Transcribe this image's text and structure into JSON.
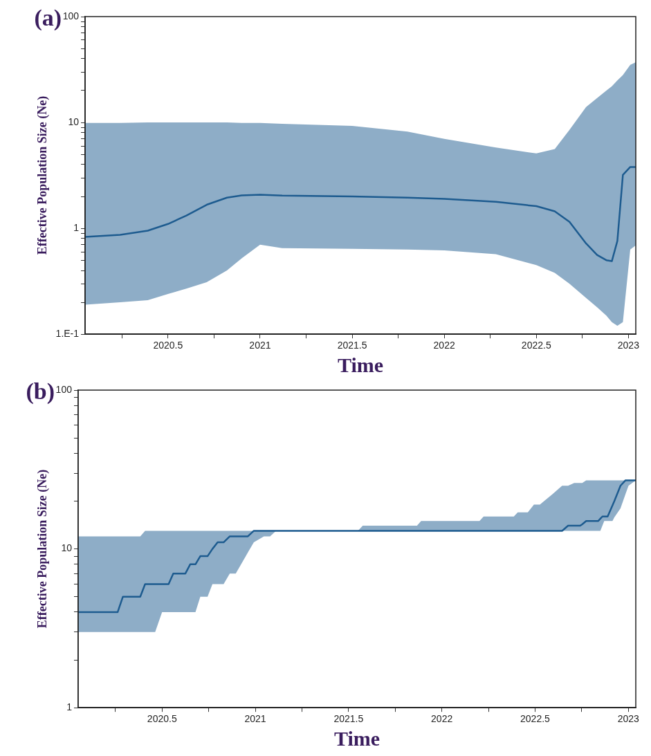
{
  "chart_data": [
    {
      "type": "line",
      "title": "(a)",
      "xlabel": "Time",
      "ylabel": "Effective Population Size (Ne)",
      "log": "y",
      "grid": false,
      "legend": false,
      "xlim": [
        2020.05,
        2023.04
      ],
      "ylim": [
        0.1,
        100
      ],
      "xticks": [
        {
          "value": 2020.25,
          "label": null
        },
        2020.5,
        {
          "value": 2020.75,
          "label": null
        },
        2021,
        {
          "value": 2021.25,
          "label": null
        },
        2021.5,
        {
          "value": 2021.75,
          "label": null
        },
        2022,
        {
          "value": 2022.25,
          "label": null
        },
        2022.5,
        {
          "value": 2022.75,
          "label": null
        },
        2023
      ],
      "yticks": [
        {
          "value": 0.1,
          "label": "1.E-1"
        },
        {
          "value": 0.2,
          "label": null
        },
        {
          "value": 0.3,
          "label": null
        },
        {
          "value": 0.4,
          "label": null
        },
        {
          "value": 0.5,
          "label": null
        },
        {
          "value": 0.6,
          "label": null
        },
        {
          "value": 0.7,
          "label": null
        },
        {
          "value": 0.8,
          "label": null
        },
        {
          "value": 0.9,
          "label": null
        },
        1,
        {
          "value": 2,
          "label": null
        },
        {
          "value": 3,
          "label": null
        },
        {
          "value": 4,
          "label": null
        },
        {
          "value": 5,
          "label": null
        },
        {
          "value": 6,
          "label": null
        },
        {
          "value": 7,
          "label": null
        },
        {
          "value": 8,
          "label": null
        },
        {
          "value": 9,
          "label": null
        },
        10,
        {
          "value": 20,
          "label": null
        },
        {
          "value": 30,
          "label": null
        },
        {
          "value": 40,
          "label": null
        },
        {
          "value": 50,
          "label": null
        },
        {
          "value": 60,
          "label": null
        },
        {
          "value": 70,
          "label": null
        },
        {
          "value": 80,
          "label": null
        },
        {
          "value": 90,
          "label": null
        },
        100
      ],
      "x": [
        2020.05,
        2020.24,
        2020.39,
        2020.5,
        2020.6,
        2020.71,
        2020.82,
        2020.9,
        2021.0,
        2021.12,
        2021.5,
        2021.8,
        2022.0,
        2022.28,
        2022.5,
        2022.6,
        2022.68,
        2022.77,
        2022.83,
        2022.88,
        2022.91,
        2022.94,
        2022.97,
        2023.01,
        2023.04
      ],
      "series": [
        {
          "color": "#1d5b8f",
          "values": [
            0.83,
            0.87,
            0.95,
            1.1,
            1.32,
            1.67,
            1.95,
            2.05,
            2.08,
            2.04,
            2.0,
            1.95,
            1.9,
            1.78,
            1.62,
            1.45,
            1.15,
            0.72,
            0.56,
            0.5,
            0.49,
            0.76,
            3.2,
            3.8,
            3.8
          ],
          "lower": [
            0.19,
            0.2,
            0.21,
            0.24,
            0.27,
            0.31,
            0.4,
            0.52,
            0.7,
            0.65,
            0.64,
            0.63,
            0.62,
            0.57,
            0.45,
            0.38,
            0.3,
            0.22,
            0.18,
            0.15,
            0.13,
            0.12,
            0.13,
            0.63,
            0.69
          ],
          "upper": [
            9.9,
            9.9,
            10,
            10,
            10,
            10,
            10,
            9.9,
            9.9,
            9.7,
            9.3,
            8.2,
            7.0,
            5.8,
            5.1,
            5.6,
            8.5,
            14,
            17,
            20,
            22,
            25,
            28,
            35,
            37
          ]
        }
      ]
    },
    {
      "type": "line",
      "title": "(b)",
      "xlabel": "Time",
      "ylabel": "Effective Population Size (Ne)",
      "log": "y",
      "grid": false,
      "legend": false,
      "xlim": [
        2020.05,
        2023.04
      ],
      "ylim": [
        1,
        100
      ],
      "xticks": [
        {
          "value": 2020.25,
          "label": null
        },
        2020.5,
        {
          "value": 2020.75,
          "label": null
        },
        2021,
        {
          "value": 2021.25,
          "label": null
        },
        2021.5,
        {
          "value": 2021.75,
          "label": null
        },
        2022,
        {
          "value": 2022.25,
          "label": null
        },
        2022.5,
        {
          "value": 2022.75,
          "label": null
        },
        2023
      ],
      "yticks": [
        1,
        {
          "value": 2,
          "label": null
        },
        {
          "value": 3,
          "label": null
        },
        {
          "value": 4,
          "label": null
        },
        {
          "value": 5,
          "label": null
        },
        {
          "value": 6,
          "label": null
        },
        {
          "value": 7,
          "label": null
        },
        {
          "value": 8,
          "label": null
        },
        {
          "value": 9,
          "label": null
        },
        10,
        {
          "value": 20,
          "label": null
        },
        {
          "value": 30,
          "label": null
        },
        {
          "value": 40,
          "label": null
        },
        {
          "value": 50,
          "label": null
        },
        {
          "value": 60,
          "label": null
        },
        {
          "value": 70,
          "label": null
        },
        {
          "value": 80,
          "label": null
        },
        {
          "value": 90,
          "label": null
        },
        100
      ],
      "x": [
        2020.05,
        2020.262,
        2020.29,
        2020.383,
        2020.409,
        2020.463,
        2020.5,
        2020.535,
        2020.56,
        2020.625,
        2020.651,
        2020.679,
        2020.705,
        2020.744,
        2020.77,
        2020.798,
        2020.83,
        2020.863,
        2020.895,
        2020.949,
        2020.96,
        2020.992,
        2021.046,
        2021.079,
        2021.111,
        2021.55,
        2021.576,
        2021.867,
        2021.889,
        2022.202,
        2022.224,
        2022.386,
        2022.407,
        2022.461,
        2022.494,
        2022.526,
        2022.548,
        2022.591,
        2022.645,
        2022.677,
        2022.71,
        2022.742,
        2022.753,
        2022.774,
        2022.839,
        2022.85,
        2022.861,
        2022.871,
        2022.889,
        2022.915,
        2022.925,
        2022.958,
        2022.984,
        2023.001,
        2023.04
      ],
      "series": [
        {
          "color": "#1d5b8f",
          "values": [
            4,
            4,
            5,
            5,
            6,
            6,
            6,
            6,
            7,
            7,
            8,
            8,
            9,
            9,
            10,
            11,
            11,
            12,
            12,
            12,
            12,
            13,
            13,
            13,
            13,
            13,
            13,
            13,
            13,
            13,
            13,
            13,
            13,
            13,
            13,
            13,
            13,
            13,
            13,
            14,
            14,
            14,
            14.3,
            15,
            15,
            15.5,
            16,
            16,
            16,
            18.8,
            20,
            25,
            27,
            27,
            27
          ],
          "lower": [
            3,
            3,
            3,
            3,
            3,
            3,
            4,
            4,
            4,
            4,
            4,
            4,
            5,
            5,
            6,
            6,
            6,
            7,
            7,
            9,
            9.5,
            11,
            12,
            12,
            13,
            13,
            13,
            13,
            13,
            13,
            13,
            13,
            13,
            13,
            13,
            13,
            13,
            13,
            13,
            13,
            13,
            13,
            13,
            13,
            13,
            13,
            14,
            15,
            15,
            15,
            15.8,
            18,
            22,
            25,
            27
          ],
          "upper": [
            12,
            12,
            12,
            12,
            13,
            13,
            13,
            13,
            13,
            13,
            13,
            13,
            13,
            13,
            13,
            13,
            13,
            13,
            13,
            13,
            13,
            13,
            13,
            13,
            13,
            13,
            14,
            14,
            15,
            15,
            16,
            16,
            17,
            17,
            19,
            19,
            20,
            22,
            25,
            25,
            26,
            26,
            26,
            27,
            27,
            27,
            27,
            27,
            27,
            27,
            27,
            27,
            27,
            27,
            27
          ]
        }
      ]
    }
  ]
}
